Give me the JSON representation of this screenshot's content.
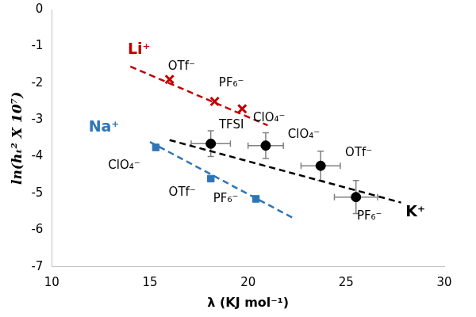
{
  "chart_data": {
    "type": "scatter",
    "x_label": "λ (KJ mol⁻¹)",
    "y_label": "ln(hₜ² X 10⁷)",
    "xlim": [
      10,
      30
    ],
    "xticks": [
      10,
      15,
      20,
      25,
      30
    ],
    "ylim": [
      -7,
      0
    ],
    "yticks": [
      -7,
      -6,
      -5,
      -4,
      -3,
      -2,
      -1,
      0
    ],
    "grid": false,
    "legend": false,
    "series": [
      {
        "name": "Li⁺",
        "color": "#c00000",
        "marker": "x",
        "x": [
          16,
          18.3,
          19.7
        ],
        "values": [
          -1.9,
          -2.5,
          -2.7
        ],
        "point_labels": [
          "OTf⁻",
          "PF₆⁻",
          "ClO₄⁻"
        ],
        "trend_x": [
          14,
          21
        ],
        "trend_values": [
          -1.55,
          -3.15
        ],
        "line_style": "dashed"
      },
      {
        "name": "Na⁺",
        "color": "#2e75b6",
        "marker": "square",
        "x": [
          15.3,
          18.1,
          20.4
        ],
        "values": [
          -3.75,
          -4.6,
          -5.15
        ],
        "point_labels": [
          "ClO₄⁻",
          "OTf⁻",
          "PF₆⁻"
        ],
        "trend_x": [
          15,
          22.4
        ],
        "trend_values": [
          -3.6,
          -5.7
        ],
        "line_style": "dashed"
      },
      {
        "name": "K⁺",
        "color": "#000000",
        "marker": "circle",
        "x": [
          18.1,
          20.9,
          23.7,
          25.5
        ],
        "values": [
          -3.65,
          -3.7,
          -4.25,
          -5.1
        ],
        "x_error": [
          1.0,
          0.9,
          1.0,
          1.1
        ],
        "y_error": [
          0.35,
          0.35,
          0.4,
          0.45
        ],
        "point_labels": [
          "TFSI",
          "ClO₄⁻",
          "OTf⁻",
          "PF₆⁻"
        ],
        "trend_x": [
          16,
          27.8
        ],
        "trend_values": [
          -3.55,
          -5.25
        ],
        "line_style": "dashed"
      }
    ]
  }
}
